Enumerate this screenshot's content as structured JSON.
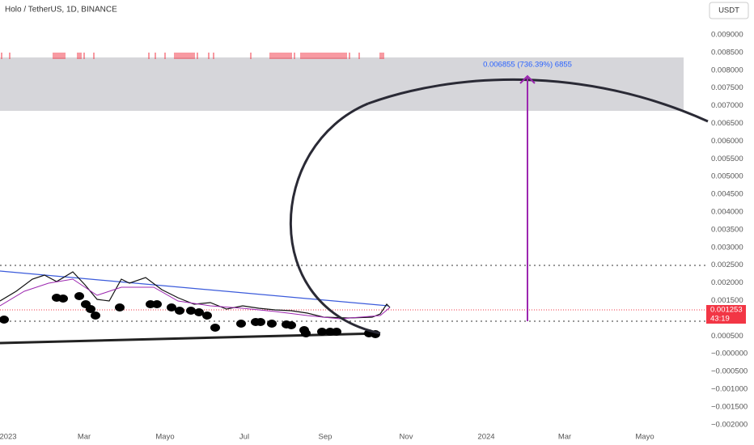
{
  "header": {
    "title": "Holo / TetherUS, 1D, BINANCE",
    "currency": "USDT"
  },
  "annotation": "0.006855 (736.39%) 6855",
  "price_label": {
    "price": "0.001253",
    "countdown": "43:19"
  },
  "y_axis": [
    "0.009000",
    "0.008500",
    "0.008000",
    "0.007500",
    "0.007000",
    "0.006500",
    "0.006000",
    "0.005500",
    "0.005000",
    "0.004500",
    "0.004000",
    "0.003500",
    "0.003000",
    "0.002500",
    "0.002000",
    "0.001500",
    "0.000500",
    "−0.000000",
    "−0.000500",
    "−0.001000",
    "−0.001500",
    "−0.002000"
  ],
  "x_axis": [
    "2023",
    "Mar",
    "Mayo",
    "Jul",
    "Sep",
    "Nov",
    "2024",
    "Mar",
    "Mayo"
  ]
}
